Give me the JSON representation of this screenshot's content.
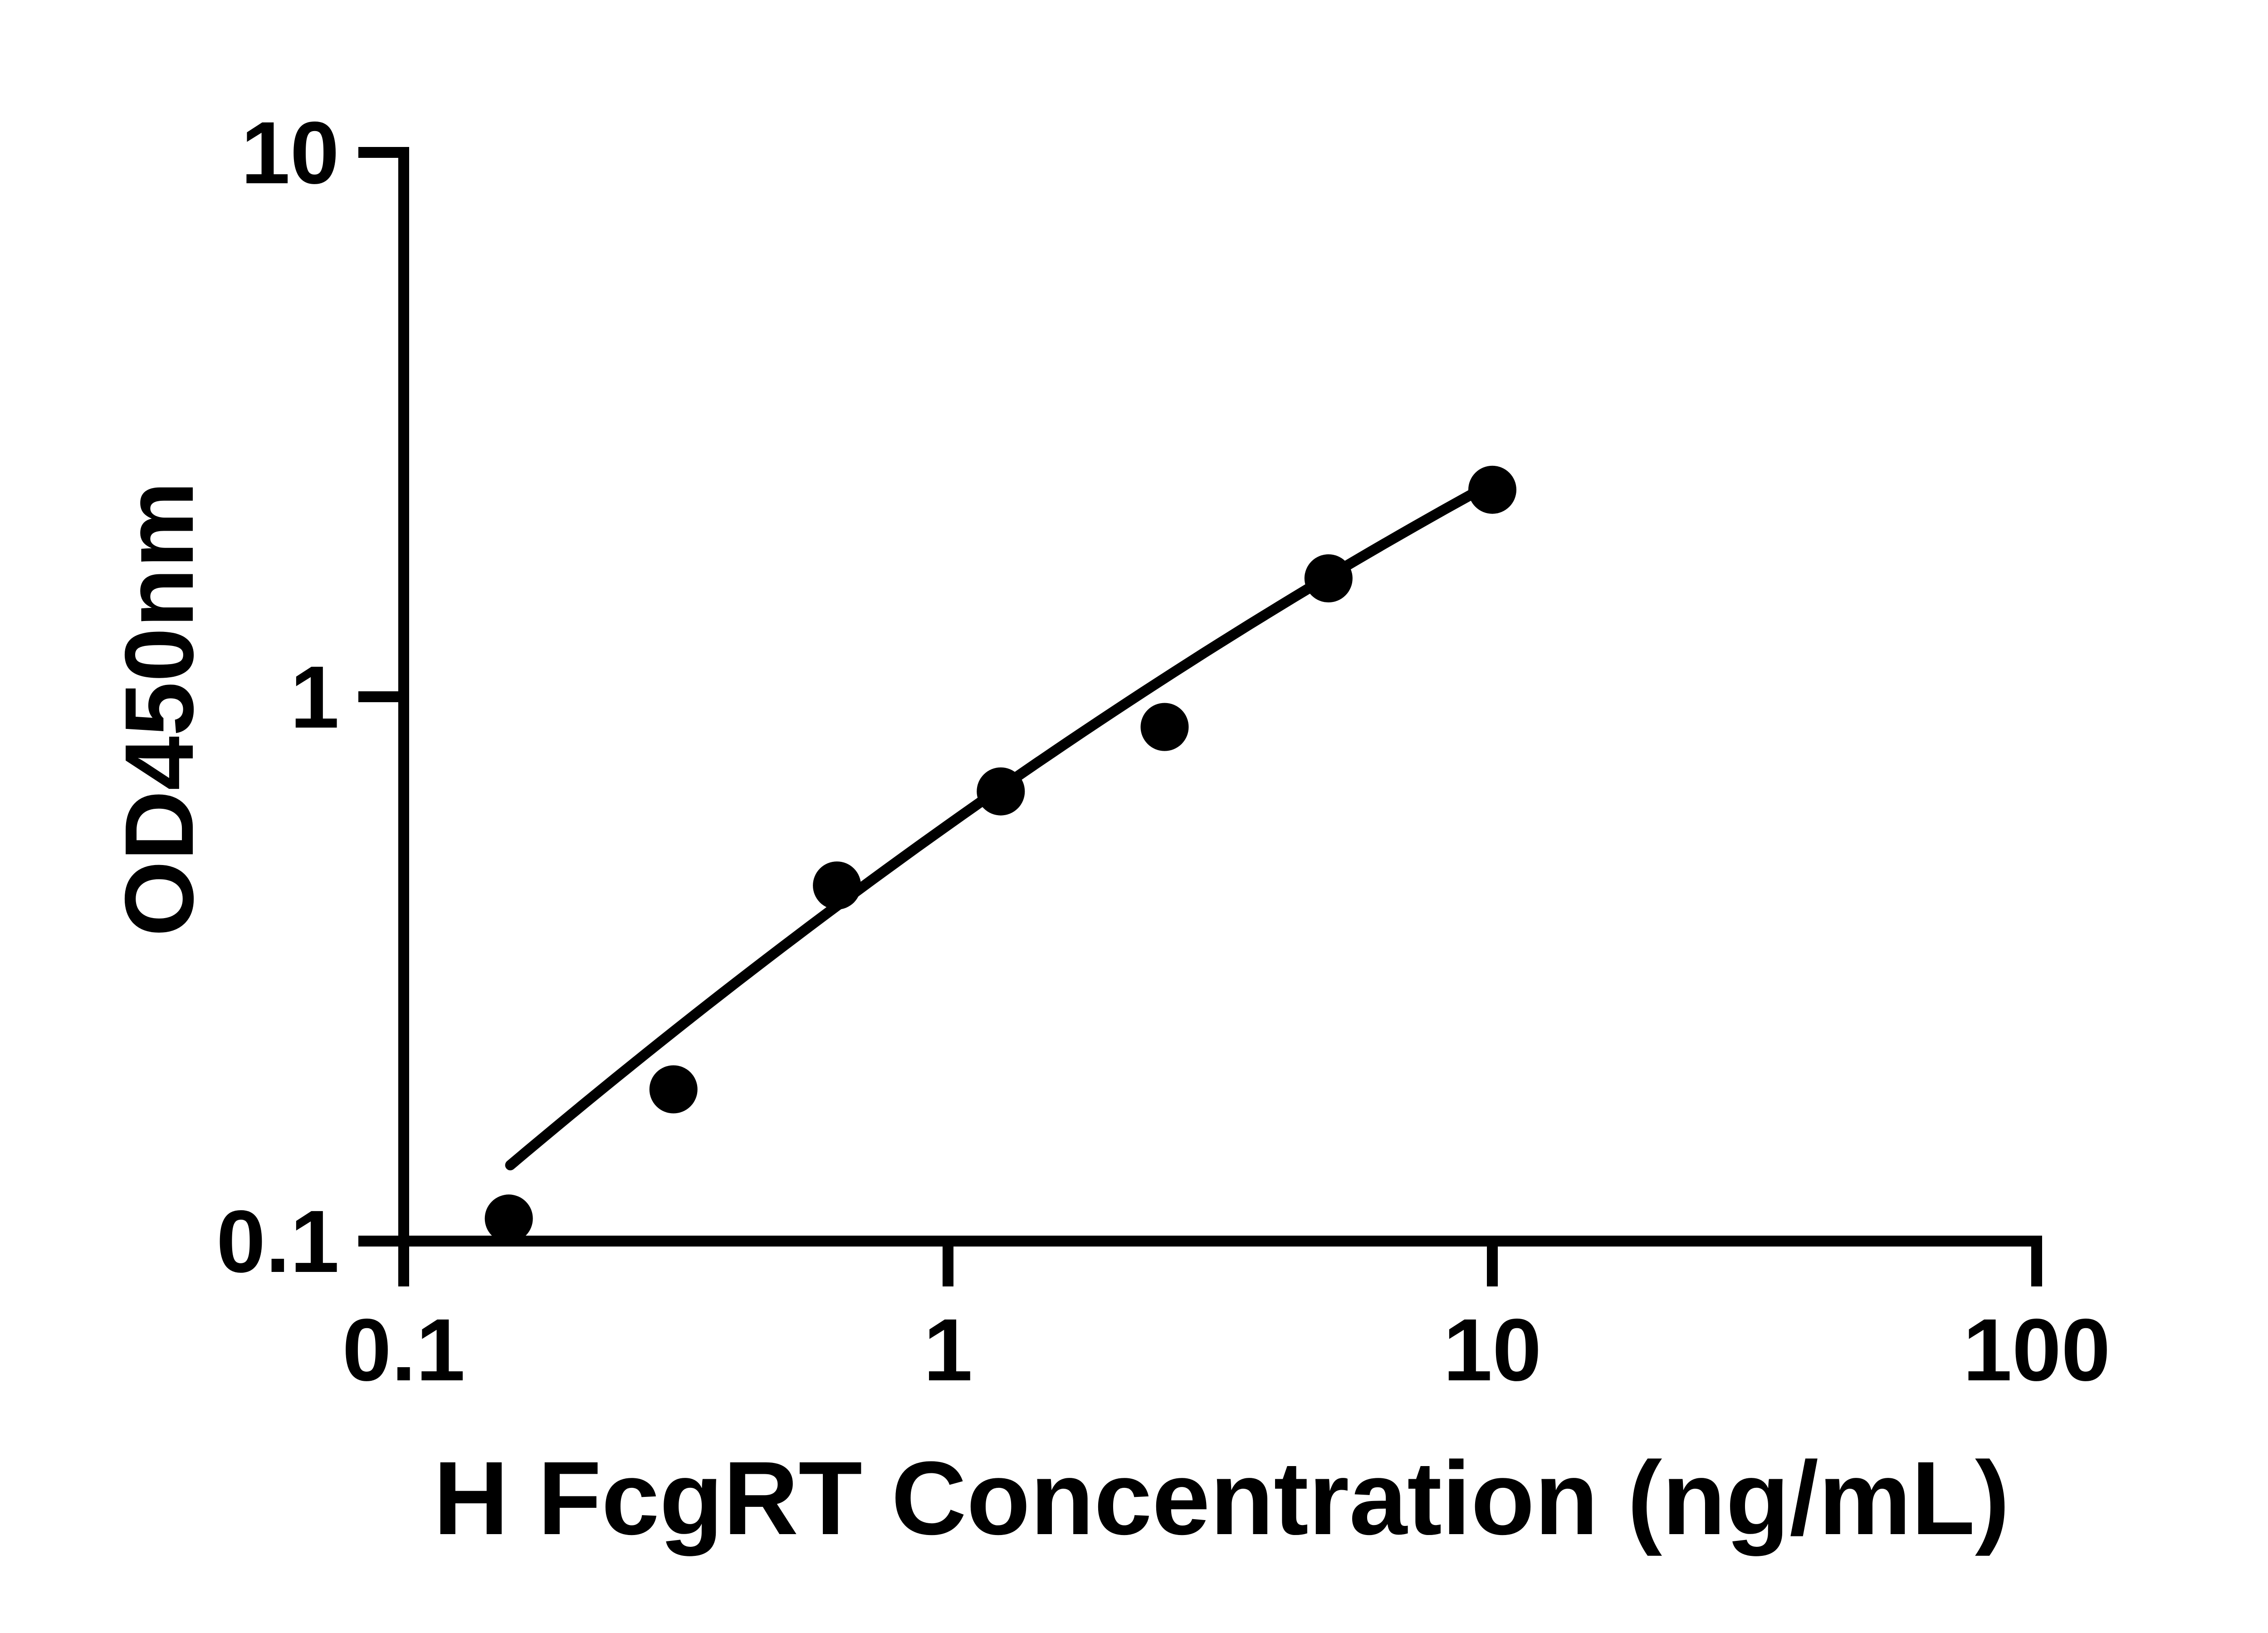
{
  "colors": {
    "foreground": "#000000",
    "background": "#ffffff"
  },
  "chart_data": {
    "type": "scatter",
    "title": "",
    "xlabel": "H FcgRT Concentration (ng/mL)",
    "ylabel": "OD450nm",
    "x_scale": "log",
    "y_scale": "log",
    "xlim": [
      0.1,
      100
    ],
    "ylim": [
      0.1,
      10
    ],
    "grid": false,
    "legend": "none",
    "x_ticks": [
      {
        "value": 0.1,
        "label": "0.1"
      },
      {
        "value": 1,
        "label": "1"
      },
      {
        "value": 10,
        "label": "10"
      },
      {
        "value": 100,
        "label": "100"
      }
    ],
    "y_ticks": [
      {
        "value": 10,
        "label": "10"
      },
      {
        "value": 1,
        "label": "1"
      },
      {
        "value": 0.1,
        "label": "0.1"
      }
    ],
    "series": [
      {
        "name": "",
        "marker": "filled-circle",
        "color": "#000000",
        "points": [
          {
            "x": 0.156,
            "y": 0.11
          },
          {
            "x": 0.313,
            "y": 0.19
          },
          {
            "x": 0.625,
            "y": 0.45
          },
          {
            "x": 1.25,
            "y": 0.67
          },
          {
            "x": 2.5,
            "y": 0.88
          },
          {
            "x": 5,
            "y": 1.65
          },
          {
            "x": 10,
            "y": 2.4
          }
        ]
      }
    ],
    "trendline": {
      "type": "quadratic_in_log10",
      "description": "log10(y) = a + b*log10(x) + c*log10(x)^2",
      "coefficients": {
        "a": -0.2356,
        "b": 0.7108,
        "c": -0.0825
      },
      "x_range": [
        0.157,
        9.3
      ],
      "color": "#000000"
    }
  }
}
